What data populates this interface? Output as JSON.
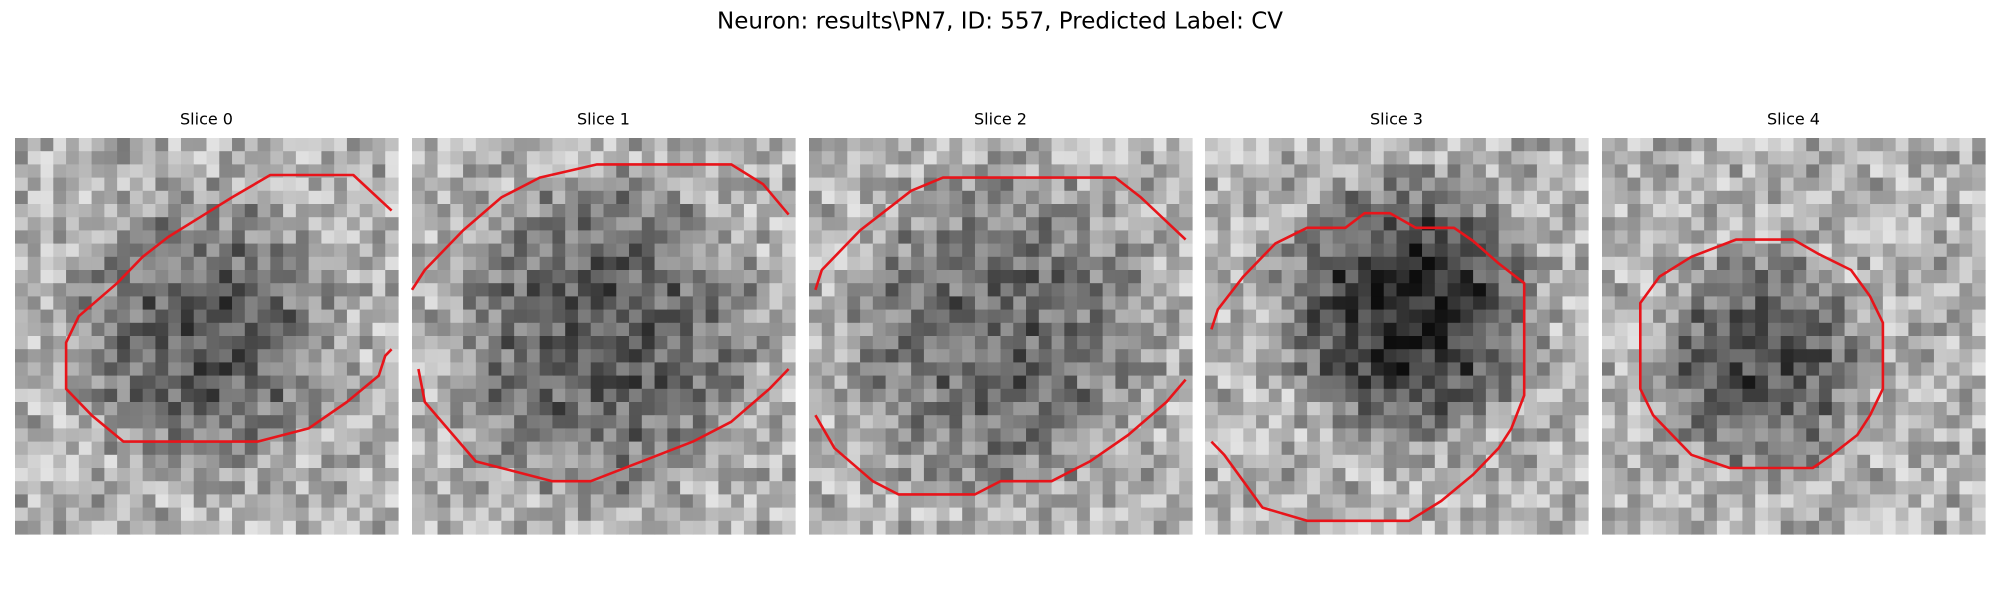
{
  "title": "Neuron: results\\PN7, ID: 557, Predicted Label: CV",
  "panels": [
    {
      "title": "Slice 0"
    },
    {
      "title": "Slice 1"
    },
    {
      "title": "Slice 2"
    },
    {
      "title": "Slice 3"
    },
    {
      "title": "Slice 4"
    }
  ]
}
